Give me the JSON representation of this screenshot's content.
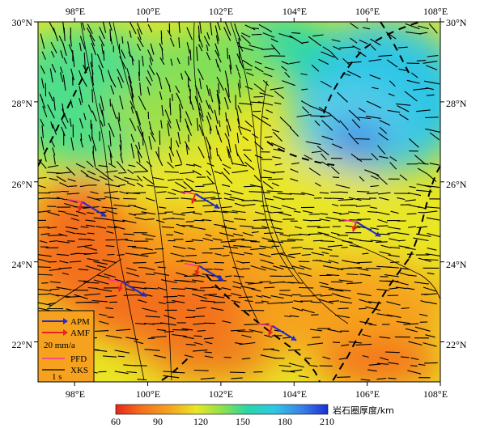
{
  "map": {
    "x_ticks": [
      "98°E",
      "100°E",
      "102°E",
      "104°E",
      "106°E",
      "108°E"
    ],
    "y_ticks": [
      "30°N",
      "28°N",
      "26°N",
      "24°N",
      "22°N"
    ],
    "x_range": [
      97,
      108
    ],
    "y_range": [
      21,
      30
    ]
  },
  "legend": {
    "items": [
      {
        "label": "APM",
        "color": "#1f2bd6",
        "type": "arrow"
      },
      {
        "label": "AMF",
        "color": "#e8231f",
        "type": "arrow"
      },
      {
        "label": "20 mm/a",
        "type": "text"
      },
      {
        "label": "PFD",
        "color": "#ff2fa0",
        "type": "line"
      },
      {
        "label": "XKS",
        "color": "#000000",
        "type": "line"
      },
      {
        "label": "1 s",
        "type": "text"
      }
    ]
  },
  "colorbar": {
    "title": "岩石圈厚度/km",
    "ticks": [
      "60",
      "90",
      "120",
      "150",
      "180",
      "210"
    ],
    "colors": [
      "#e8271d",
      "#f4701a",
      "#f6a21e",
      "#e9e625",
      "#8ee14a",
      "#28d7a6",
      "#2fc6e6",
      "#3b7fe6",
      "#1b2fd6"
    ]
  },
  "chart_data": {
    "type": "heatmap",
    "title": "",
    "xlabel": "",
    "ylabel": "",
    "xlim": [
      97,
      108
    ],
    "ylim": [
      21,
      30
    ],
    "value_label": "岩石圈厚度/km",
    "value_range": [
      60,
      210
    ],
    "apm_amf_stations": [
      {
        "lon": 98.2,
        "lat": 25.5
      },
      {
        "lon": 101.3,
        "lat": 25.7
      },
      {
        "lon": 99.3,
        "lat": 23.5
      },
      {
        "lon": 101.4,
        "lat": 23.9
      },
      {
        "lon": 103.4,
        "lat": 22.4
      },
      {
        "lon": 105.7,
        "lat": 25.0
      }
    ]
  }
}
